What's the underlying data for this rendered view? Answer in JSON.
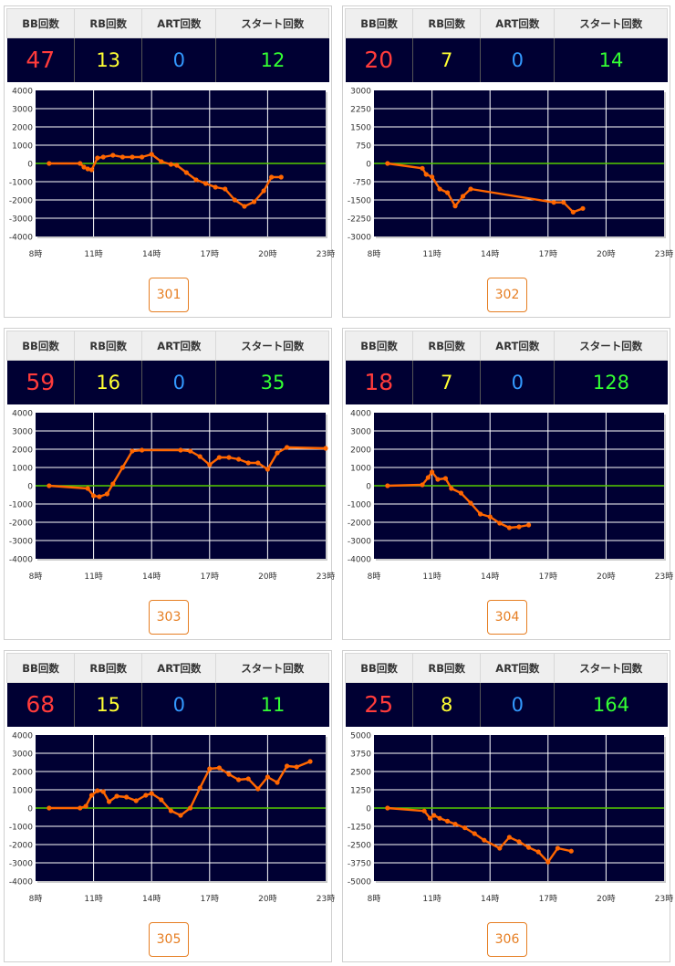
{
  "colors": {
    "bb": "#ff3b3b",
    "rb": "#ffff33",
    "art": "#3399ff",
    "start": "#33ff33",
    "line": "#ff6600",
    "zero": "#55cc00",
    "plot_bg": "#000033",
    "button": "#e67e22"
  },
  "header": {
    "bb": "BB回数",
    "rb": "RB回数",
    "art": "ART回数",
    "start": "スタート回数"
  },
  "x_axis_ticks": [
    "8時",
    "11時",
    "14時",
    "17時",
    "20時",
    "23時"
  ],
  "machines": [
    {
      "number": "301",
      "bb": "47",
      "rb": "13",
      "art": "0",
      "start": "12"
    },
    {
      "number": "302",
      "bb": "20",
      "rb": "7",
      "art": "0",
      "start": "14"
    },
    {
      "number": "303",
      "bb": "59",
      "rb": "16",
      "art": "0",
      "start": "35"
    },
    {
      "number": "304",
      "bb": "18",
      "rb": "7",
      "art": "0",
      "start": "128"
    },
    {
      "number": "305",
      "bb": "68",
      "rb": "15",
      "art": "0",
      "start": "11"
    },
    {
      "number": "306",
      "bb": "25",
      "rb": "8",
      "art": "0",
      "start": "164"
    }
  ],
  "chart_data": [
    {
      "type": "line",
      "xlim": [
        8,
        23
      ],
      "ylim": [
        -4000,
        4000
      ],
      "yticks": [
        "4000",
        "3000",
        "2000",
        "1000",
        "0",
        "-1000",
        "-2000",
        "-3000",
        "-4000"
      ],
      "x": [
        8.7,
        10.3,
        10.5,
        10.7,
        10.9,
        11.2,
        11.5,
        12.0,
        12.5,
        13.0,
        13.5,
        14.0,
        14.5,
        15.0,
        15.3,
        15.8,
        16.3,
        16.8,
        17.3,
        17.8,
        18.3,
        18.8,
        19.3,
        19.8,
        20.2,
        20.7
      ],
      "values": [
        0,
        0,
        -200,
        -300,
        -350,
        300,
        350,
        450,
        350,
        350,
        350,
        500,
        100,
        -50,
        -100,
        -500,
        -900,
        -1100,
        -1300,
        -1400,
        -2000,
        -2350,
        -2100,
        -1500,
        -750,
        -750
      ]
    },
    {
      "type": "line",
      "xlim": [
        8,
        23
      ],
      "ylim": [
        -3000,
        3000
      ],
      "yticks": [
        "3000",
        "2250",
        "1500",
        "750",
        "0",
        "-750",
        "-1500",
        "-2250",
        "-3000"
      ],
      "x": [
        8.7,
        10.5,
        10.7,
        11.0,
        11.4,
        11.8,
        12.2,
        12.6,
        13.0,
        17.3,
        17.8,
        18.3,
        18.8
      ],
      "values": [
        0,
        -200,
        -450,
        -550,
        -1050,
        -1200,
        -1750,
        -1350,
        -1050,
        -1600,
        -1600,
        -2000,
        -1850
      ]
    },
    {
      "type": "line",
      "xlim": [
        8,
        23
      ],
      "ylim": [
        -4000,
        4000
      ],
      "yticks": [
        "4000",
        "3000",
        "2000",
        "1000",
        "0",
        "-1000",
        "-2000",
        "-3000",
        "-4000"
      ],
      "x": [
        8.7,
        10.7,
        11.0,
        11.3,
        11.7,
        12.0,
        12.5,
        13.0,
        13.5,
        15.5,
        16.0,
        16.5,
        17.0,
        17.5,
        18.0,
        18.5,
        19.0,
        19.5,
        20.0,
        20.5,
        21.0,
        23.0
      ],
      "values": [
        0,
        -150,
        -550,
        -600,
        -450,
        100,
        1000,
        1900,
        1950,
        1950,
        1900,
        1600,
        1150,
        1550,
        1550,
        1450,
        1250,
        1250,
        900,
        1800,
        2100,
        2050
      ]
    },
    {
      "type": "line",
      "xlim": [
        8,
        23
      ],
      "ylim": [
        -4000,
        4000
      ],
      "yticks": [
        "4000",
        "3000",
        "2000",
        "1000",
        "0",
        "-1000",
        "-2000",
        "-3000",
        "-4000"
      ],
      "x": [
        8.7,
        10.5,
        10.8,
        11.0,
        11.3,
        11.7,
        12.0,
        12.5,
        13.0,
        13.5,
        14.0,
        14.5,
        15.0,
        15.5,
        16.0
      ],
      "values": [
        0,
        50,
        450,
        750,
        350,
        400,
        -150,
        -400,
        -950,
        -1550,
        -1700,
        -2050,
        -2300,
        -2250,
        -2150
      ]
    },
    {
      "type": "line",
      "xlim": [
        8,
        23
      ],
      "ylim": [
        -4000,
        4000
      ],
      "yticks": [
        "4000",
        "3000",
        "2000",
        "1000",
        "0",
        "-1000",
        "-2000",
        "-3000",
        "-4000"
      ],
      "x": [
        8.7,
        10.3,
        10.6,
        10.9,
        11.2,
        11.5,
        11.8,
        12.2,
        12.7,
        13.2,
        13.7,
        14.0,
        14.5,
        15.0,
        15.5,
        16.0,
        16.5,
        17.0,
        17.5,
        18.0,
        18.5,
        19.0,
        19.5,
        20.0,
        20.5,
        21.0,
        21.5,
        22.2
      ],
      "values": [
        0,
        0,
        100,
        700,
        950,
        900,
        350,
        650,
        600,
        400,
        700,
        800,
        450,
        -150,
        -400,
        0,
        1100,
        2150,
        2200,
        1850,
        1550,
        1600,
        1050,
        1700,
        1400,
        2300,
        2250,
        2550
      ]
    },
    {
      "type": "line",
      "xlim": [
        8,
        23
      ],
      "ylim": [
        -5000,
        5000
      ],
      "yticks": [
        "5000",
        "3750",
        "2500",
        "1250",
        "0",
        "-1250",
        "-2500",
        "-3750",
        "-5000"
      ],
      "x": [
        8.7,
        10.6,
        10.9,
        11.1,
        11.4,
        11.8,
        12.2,
        12.7,
        13.2,
        13.7,
        14.5,
        15.0,
        15.5,
        16.0,
        16.5,
        17.0,
        17.5,
        18.2
      ],
      "values": [
        0,
        -200,
        -700,
        -500,
        -700,
        -900,
        -1100,
        -1350,
        -1750,
        -2200,
        -2750,
        -2000,
        -2300,
        -2700,
        -3000,
        -3700,
        -2750,
        -2950
      ]
    }
  ]
}
